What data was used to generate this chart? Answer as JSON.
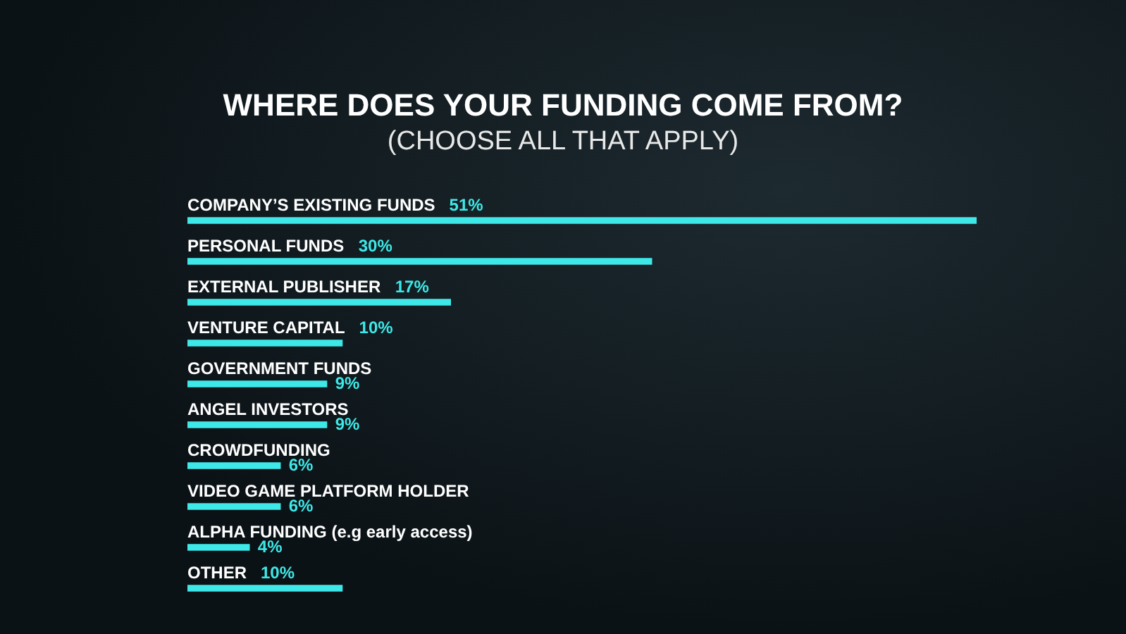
{
  "chart_data": {
    "type": "bar",
    "orientation": "horizontal",
    "title": "WHERE DOES YOUR FUNDING COME FROM?",
    "subtitle": "(CHOOSE ALL THAT APPLY)",
    "categories": [
      "COMPANY’S EXISTING FUNDS",
      "PERSONAL FUNDS",
      "EXTERNAL PUBLISHER",
      "VENTURE CAPITAL",
      "GOVERNMENT FUNDS",
      "ANGEL INVESTORS",
      "CROWDFUNDING",
      "VIDEO GAME PLATFORM HOLDER",
      "ALPHA FUNDING (e.g early access)",
      "OTHER"
    ],
    "values": [
      51,
      30,
      17,
      10,
      9,
      9,
      6,
      6,
      4,
      10
    ],
    "value_labels": [
      "51%",
      "30%",
      "17%",
      "10%",
      "9%",
      "9%",
      "6%",
      "6%",
      "4%",
      "10%"
    ],
    "color": "#3ee8e8"
  }
}
